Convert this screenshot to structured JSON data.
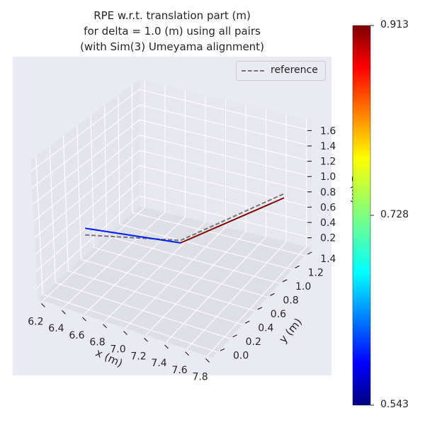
{
  "chart_data": {
    "type": "line",
    "projection": "3d",
    "title_lines": [
      "RPE w.r.t. translation part (m)",
      "for delta = 1.0 (m) using all pairs",
      "(with Sim(3) Umeyama alignment)"
    ],
    "xlabel": "x (m)",
    "ylabel": "y (m)",
    "zlabel": "z (m)",
    "x_ticks": [
      "6.2",
      "6.4",
      "6.6",
      "6.8",
      "7.0",
      "7.2",
      "7.4",
      "7.6",
      "7.8"
    ],
    "y_ticks": [
      "0.0",
      "0.2",
      "0.4",
      "0.6",
      "0.8",
      "1.0",
      "1.2",
      "1.4"
    ],
    "z_ticks": [
      "0.2",
      "0.4",
      "0.6",
      "0.8",
      "1.0",
      "1.2",
      "1.4",
      "1.6"
    ],
    "series": [
      {
        "name": "reference",
        "style": "dashed",
        "color": "#777777"
      }
    ],
    "estimate_path": [
      {
        "x": 6.22,
        "y": 0.55,
        "z": 0.5,
        "error": 0.543
      },
      {
        "x": 7.0,
        "y": 0.8,
        "z": 0.42,
        "error": 0.6
      },
      {
        "x": 7.8,
        "y": 1.15,
        "z": 0.95,
        "error": 0.913
      }
    ],
    "reference_path": [
      {
        "x": 6.22,
        "y": 0.55,
        "z": 0.42
      },
      {
        "x": 7.0,
        "y": 0.8,
        "z": 0.45
      },
      {
        "x": 7.8,
        "y": 1.15,
        "z": 1.0
      }
    ],
    "colorbar": {
      "colormap": "jet",
      "min": 0.543,
      "max": 0.913,
      "tick_labels": [
        "0.913",
        "0.728",
        "0.543"
      ]
    },
    "legend_position": "upper right",
    "grid": true,
    "colors": {
      "pane": "#eaeaf2",
      "grid": "#ffffff",
      "text": "#262626"
    }
  }
}
